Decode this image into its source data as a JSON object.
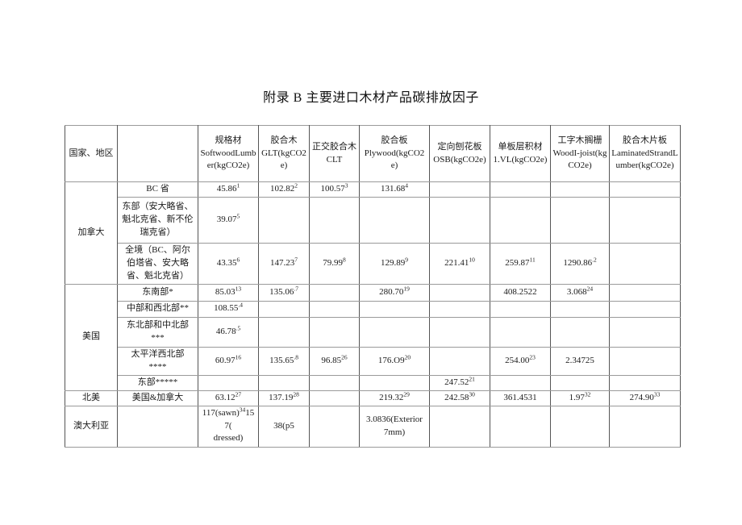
{
  "page": {
    "title": "附录 B 主要进口木材产品碳排放因子"
  },
  "table": {
    "header": {
      "country_region": "国家、地区",
      "region_col": "",
      "products": [
        {
          "zh": "规格材",
          "en": "SoftwoodLumber(kgCO2e)"
        },
        {
          "zh": "胶合木",
          "en": "GLT(kgCO2e)"
        },
        {
          "zh": "正交胶合木",
          "en": "CLT"
        },
        {
          "zh": "胶合板",
          "en": "Plywood(kgCO2e)"
        },
        {
          "zh": "定向刨花板",
          "en": "OSB(kgCO2e)"
        },
        {
          "zh": "单板层积材",
          "en": "1.VL(kgCO2e)"
        },
        {
          "zh": "工字木搁栅",
          "en": "WoodI-joist(kgCO2e)"
        },
        {
          "zh": "胶合木片板",
          "en": "LaminatedStrandLumber(kgCO2e)"
        }
      ]
    },
    "rows": [
      {
        "country": {
          "label": "加拿大",
          "rowspan": 3
        },
        "region": "BC 省",
        "values": [
          "45.86^{1}",
          "102.82^{2}",
          "100.57^{3}",
          "131.68^{4}",
          "",
          "",
          "",
          ""
        ]
      },
      {
        "region": "东部（安大略省、\n魁北克省、新不伦\n瑞克省）",
        "values": [
          "39.07^{5}",
          "",
          "",
          "",
          "",
          "",
          "",
          ""
        ]
      },
      {
        "region": "全境（BC、阿尔\n伯塔省、安大略\n省、魁北克省）",
        "values": [
          "43.35^{6}",
          "147.23^{7}",
          "79.99^{8}",
          "129.89^{9}",
          "221.41^{10}",
          "259.87^{11}",
          "1290.86^{.2}",
          ""
        ]
      },
      {
        "country": {
          "label": "美国",
          "rowspan": 5
        },
        "region": "东南部*",
        "values": [
          "85.03^{13}",
          "135.06^{.7}",
          "",
          "280.70^{19}",
          "",
          "408.2522",
          "3.068^{24}",
          ""
        ]
      },
      {
        "region": "中部和西北部**",
        "values": [
          "108.55^{.4}",
          "",
          "",
          "",
          "",
          "",
          "",
          ""
        ]
      },
      {
        "region": "东北部和中北部\n***",
        "values": [
          "46.78^{.5}",
          "",
          "",
          "",
          "",
          "",
          "",
          ""
        ]
      },
      {
        "region": "太平洋西北部\n****",
        "values": [
          "60.97^{16}",
          "135.65^{.8}",
          "96.85^{26}",
          "176.O9^{20}",
          "",
          "254.00^{23}",
          "2.34725",
          ""
        ]
      },
      {
        "region": "东部*****",
        "values": [
          "",
          "",
          "",
          "",
          "247.52^{21}",
          "",
          "",
          ""
        ]
      },
      {
        "country": {
          "label": "北美",
          "rowspan": 1
        },
        "region": "美国&加拿大",
        "values": [
          "63.12^{27}",
          "137.19^{28}",
          "",
          "219.32^{29}",
          "242.58^{30}",
          "361.4531",
          "1.97^{32}",
          "274.90^{33}"
        ]
      },
      {
        "country": {
          "label": "澳大利亚",
          "rowspan": 1
        },
        "region": "",
        "values": [
          "117(sawn)^{34}157(\ndressed)",
          "38(p5",
          "",
          "3.0836(Exterior\n7mm)",
          "",
          "",
          "",
          ""
        ]
      }
    ]
  }
}
